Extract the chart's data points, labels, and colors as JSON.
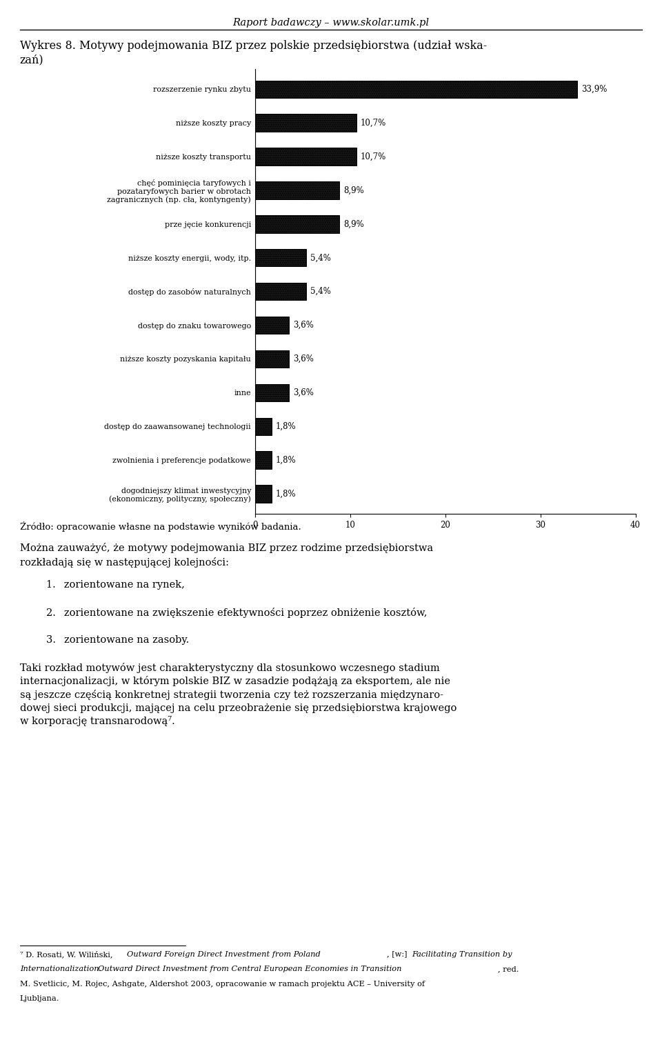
{
  "title_line1": "Wykres 8. Motywy podejmowania BIZ przez polskie przedsiębiorstwa (udział wska-",
  "title_line2": "zań)",
  "categories": [
    "rozszerzenie rynku zbytu",
    "niższe koszty pracy",
    "niższe koszty transportu",
    "chęć pominięcia taryfowych i\npozataryfowych barier w obrotach\nzagranicznych (np. cła, kontyngenty)",
    "prze jęcie konkurencji",
    "niższe koszty energii, wody, itp.",
    "dostęp do zasobów naturalnych",
    "dostęp do znaku towarowego",
    "niższe koszty pozyskania kapitału",
    "inne",
    "dostęp do zaawansowanej technologii",
    "zwolnienia i preferencje podatkowe",
    "dogodniejszy klimat inwestycyjny\n(ekonomiczny, polityczny, społeczny)"
  ],
  "values": [
    33.9,
    10.7,
    10.7,
    8.9,
    8.9,
    5.4,
    5.4,
    3.6,
    3.6,
    3.6,
    1.8,
    1.8,
    1.8
  ],
  "value_labels": [
    "33,9%",
    "10,7%",
    "10,7%",
    "8,9%",
    "8,9%",
    "5,4%",
    "5,4%",
    "3,6%",
    "3,6%",
    "3,6%",
    "1,8%",
    "1,8%",
    "1,8%"
  ],
  "xlim": [
    0,
    40
  ],
  "xticks": [
    0,
    10,
    20,
    30,
    40
  ],
  "background_color": "#ffffff",
  "source_text": "Źródło: opracowanie własne na podstawie wyników badania.",
  "body_text_1a": "Można zauważyć, że motywy podejmowania BIZ przez rodzime przedsiębiorstwa",
  "body_text_1b": "rozkładają się w następującej kolejności:",
  "list_items": [
    "zorientowane na rynek,",
    "zorientowane na zwiększenie efektywności poprzez obniżenie kosztów,",
    "zorientowane na zasoby."
  ],
  "body_text_2": "Taki rozkład motywów jest charakterystyczny dla stosunkowo wczesnego stadium\ninternacjonalizacji, w którym polskie BIZ w zasadzie podążają za eksportem, ale nie\nsą jeszcze częścią konkretnej strategii tworzenia czy też rozszerzania międzynaro-\ndowej sieci produkcji, mającej na celu przeobrażenie się przedsiębiorstwa krajowego\nw korporację transnarodową⁷.",
  "footnote_normal": "⁷ D. Rosati, W. Wiliński, ",
  "footnote_italic1": "Outward Foreign Direct Investment from Poland",
  "footnote_rest": ", [w:] ",
  "footnote_italic2": "Facilitating Transition by\nInternationalization. Outward Direct Investment from Central European Economies in Transition",
  "footnote_end": ", red.\nM. Svetlicic, M. Rojec, Ashgate, Aldershot 2003, opracowanie w ramach projektu ACE – University of\nLjubljana.",
  "header_text": "Raport badawczy – www.skolar.umk.pl"
}
